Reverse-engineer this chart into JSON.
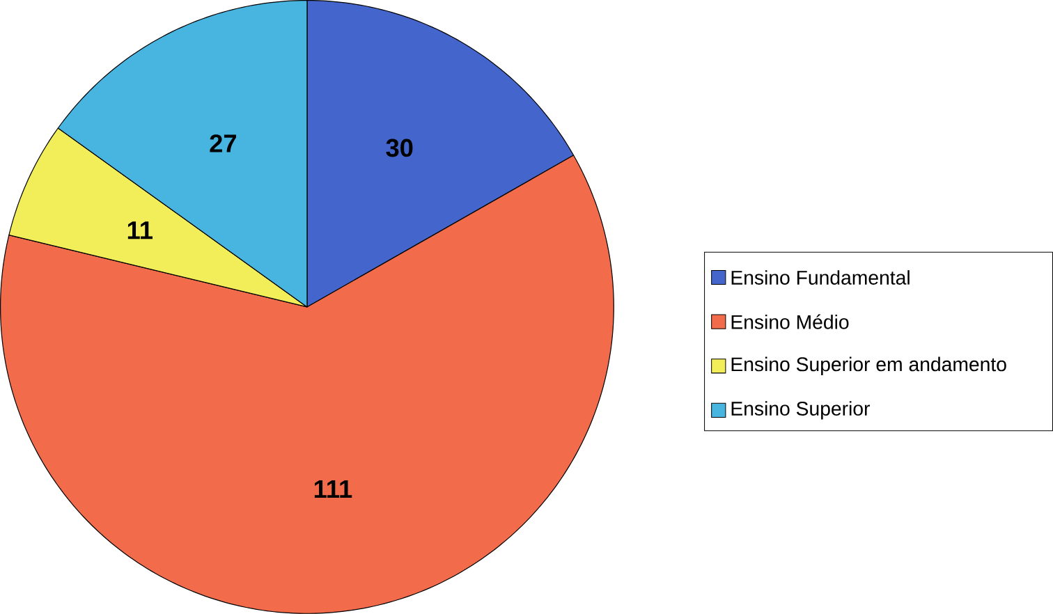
{
  "chart_data": {
    "type": "pie",
    "categories": [
      "Ensino Fundamental",
      "Ensino Médio",
      "Ensino Superior em andamento",
      "Ensino Superior"
    ],
    "values": [
      30,
      111,
      11,
      27
    ],
    "colors": [
      "#4466cc",
      "#f26b4b",
      "#f2ee5a",
      "#48b4e0"
    ],
    "data_labels": true,
    "legend": "right"
  }
}
